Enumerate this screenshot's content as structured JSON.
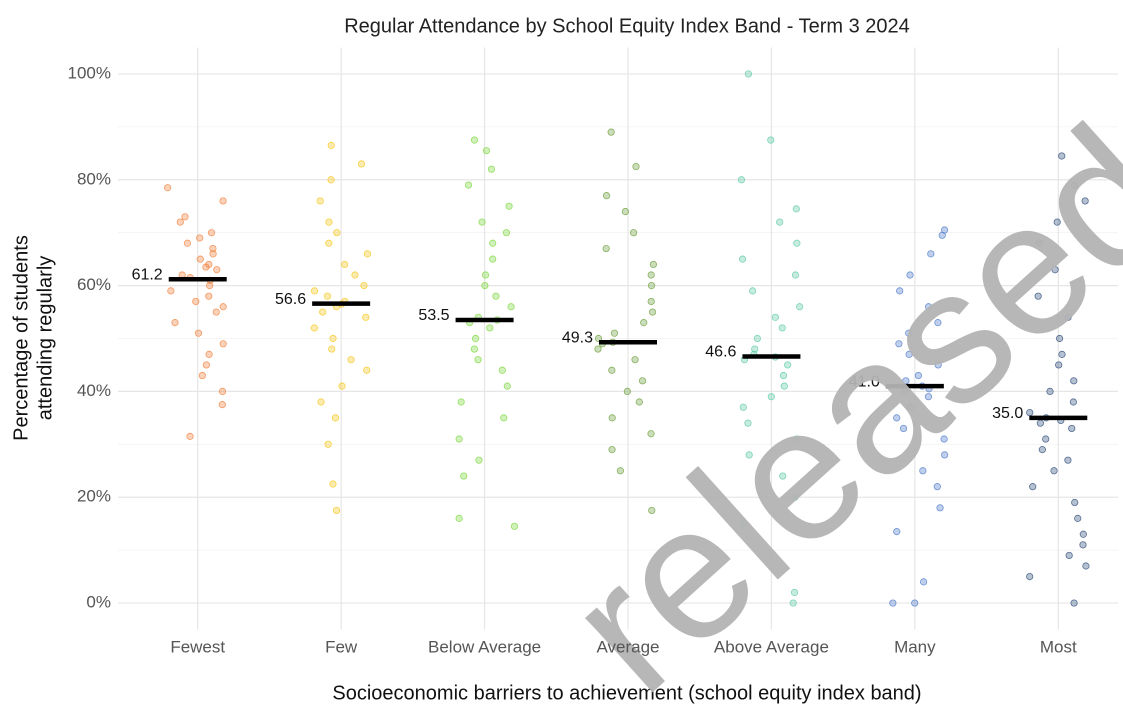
{
  "chart_data": {
    "type": "strip",
    "title": "Regular Attendance by School Equity Index Band - Term 3 2024",
    "x_label": "Socioeconomic barriers to achievement (school equity index band)",
    "y_label": [
      "Percentage of students",
      "attending regularly"
    ],
    "watermark": "released",
    "categories": [
      "Fewest",
      "Few",
      "Below Average",
      "Average",
      "Above Average",
      "Many",
      "Most"
    ],
    "ylim": [
      -5,
      105
    ],
    "yticks": [
      {
        "value": 0,
        "label": "0%"
      },
      {
        "value": 20,
        "label": "20%"
      },
      {
        "value": 40,
        "label": "40%"
      },
      {
        "value": 60,
        "label": "60%"
      },
      {
        "value": 80,
        "label": "80%"
      },
      {
        "value": 100,
        "label": "100%"
      }
    ],
    "minor_yticks": [
      10,
      30,
      50,
      70,
      90
    ],
    "grid": true,
    "series": [
      {
        "name": "Fewest",
        "color": "#f07f3a",
        "median": 61.2,
        "median_label": "61.2",
        "values": [
          78.5,
          76,
          73,
          72,
          70,
          69,
          68,
          67,
          66,
          65,
          64,
          63.5,
          63,
          62,
          61.5,
          61,
          60,
          59,
          58,
          57,
          56,
          55,
          53,
          51,
          49,
          47,
          45,
          43,
          40,
          37.5,
          31.5
        ]
      },
      {
        "name": "Few",
        "color": "#f5c518",
        "median": 56.6,
        "median_label": "56.6",
        "values": [
          86.5,
          83,
          80,
          76,
          72,
          70,
          68,
          66,
          64,
          62,
          60,
          59,
          58,
          57,
          56.5,
          56,
          55,
          54,
          52,
          50,
          48,
          46,
          44,
          41,
          38,
          35,
          30,
          22.5,
          17.5
        ]
      },
      {
        "name": "Below Average",
        "color": "#7bd63b",
        "median": 53.5,
        "median_label": "53.5",
        "values": [
          87.5,
          85.5,
          82,
          79,
          75,
          72,
          70,
          68,
          65,
          62,
          60,
          58,
          56,
          54,
          53.5,
          53,
          52,
          50,
          48,
          46,
          44,
          41,
          38,
          35,
          31,
          27,
          24,
          16,
          14.5
        ]
      },
      {
        "name": "Average",
        "color": "#6a9e3a",
        "median": 49.3,
        "median_label": "49.3",
        "values": [
          89,
          82.5,
          77,
          74,
          70,
          67,
          64,
          62,
          60,
          57,
          55,
          53,
          51,
          50,
          49.3,
          49,
          48,
          46,
          44,
          42,
          40,
          38,
          35,
          32,
          29,
          25,
          17.5
        ]
      },
      {
        "name": "Above Average",
        "color": "#5bc9a3",
        "median": 46.6,
        "median_label": "46.6",
        "values": [
          100,
          87.5,
          80,
          74.5,
          72,
          68,
          65,
          62,
          59,
          56,
          54,
          52,
          50,
          48,
          47,
          46.5,
          46,
          45,
          43,
          41,
          39,
          37,
          34,
          31,
          28,
          24,
          20,
          15,
          2,
          0
        ]
      },
      {
        "name": "Many",
        "color": "#4a78c8",
        "median": 41.0,
        "median_label": "41.0",
        "values": [
          70.5,
          69.5,
          66,
          62,
          59,
          56,
          53,
          51,
          49,
          47,
          45,
          43,
          42,
          41,
          40.5,
          40,
          39,
          37,
          35,
          33,
          31,
          28,
          25,
          22,
          18,
          13.5,
          4,
          0,
          0
        ]
      },
      {
        "name": "Most",
        "color": "#2b4a78",
        "median": 35.0,
        "median_label": "35.0",
        "values": [
          84.5,
          79,
          76,
          72,
          68,
          63,
          58,
          54,
          50,
          47,
          45,
          42,
          40,
          38,
          36,
          35,
          34.5,
          34,
          33,
          31,
          29,
          27,
          25,
          22,
          19,
          16,
          13,
          11,
          9,
          7,
          5,
          0
        ]
      }
    ]
  }
}
